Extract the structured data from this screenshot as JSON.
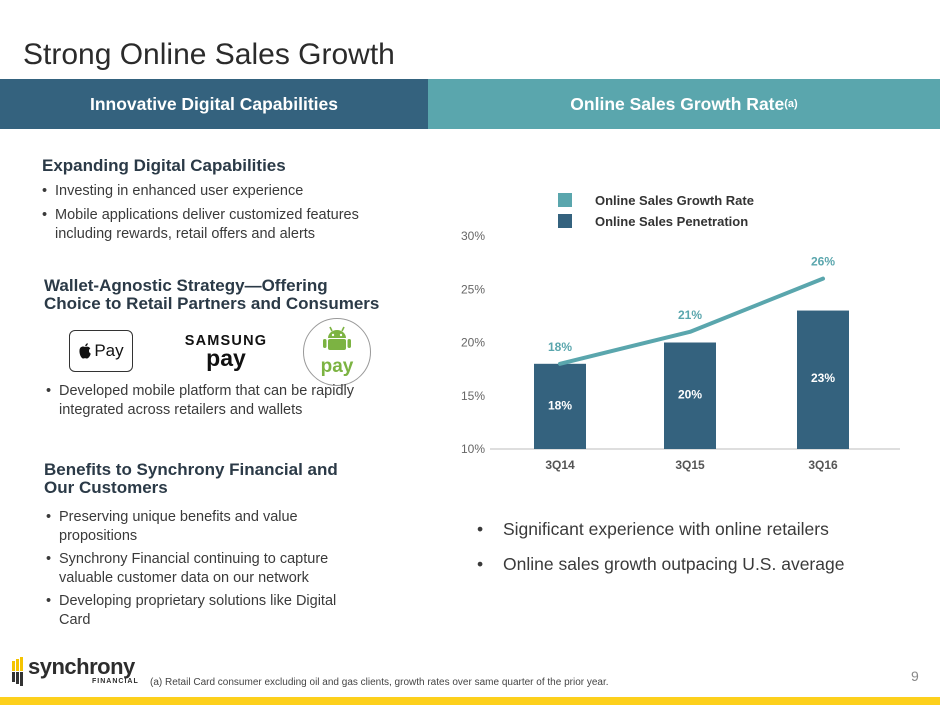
{
  "page": {
    "title": "Strong Online Sales Growth",
    "page_number": "9",
    "footnote": "(a)  Retail Card consumer excluding oil and gas clients, growth rates over same quarter of the prior year."
  },
  "header": {
    "left": "Innovative Digital Capabilities",
    "right": "Online Sales Growth Rate",
    "right_sup": "(a)"
  },
  "left": {
    "section1": {
      "title": "Expanding Digital Capabilities",
      "bullets": [
        {
          "line1": "Investing in enhanced user experience"
        },
        {
          "line1": "Mobile applications deliver customized features",
          "line2": "including rewards, retail offers and alerts"
        }
      ]
    },
    "section2": {
      "title_line1": "Wallet-Agnostic Strategy—Offering",
      "title_line2": "Choice to Retail Partners and Consumers",
      "logos": {
        "apple": "Pay",
        "samsung_top": "SAMSUNG",
        "samsung_bottom": "pay",
        "android": "pay"
      },
      "bullet_line1": "Developed mobile platform that can be rapidly",
      "bullet_line2": "integrated across retailers and wallets"
    },
    "section3": {
      "title_line1": "Benefits to Synchrony Financial and",
      "title_line2": "Our Customers",
      "bullets": [
        {
          "line1": "Preserving unique benefits and value",
          "line2": "propositions"
        },
        {
          "line1": "Synchrony Financial continuing to capture",
          "line2": "valuable customer data on our network"
        },
        {
          "line1": "Developing proprietary solutions like Digital",
          "line2": "Card"
        }
      ]
    }
  },
  "right": {
    "bullets": [
      "Significant experience with online retailers",
      "Online sales growth outpacing U.S. average"
    ]
  },
  "brand": {
    "name": "synchrony",
    "sub": "FINANCIAL"
  },
  "colors": {
    "navy": "#34627e",
    "teal": "#5aa6ad",
    "yellow": "#fdd01c"
  },
  "chart_data": {
    "type": "bar",
    "categories": [
      "3Q14",
      "3Q15",
      "3Q16"
    ],
    "ylim": [
      10,
      30
    ],
    "yticks": [
      "10%",
      "15%",
      "20%",
      "25%",
      "30%"
    ],
    "ytick_values": [
      10,
      15,
      20,
      25,
      30
    ],
    "series": [
      {
        "name": "Online Sales Penetration",
        "kind": "bar",
        "values": [
          18,
          20,
          23
        ],
        "labels": [
          "18%",
          "20%",
          "23%"
        ],
        "color": "#34627e"
      },
      {
        "name": "Online Sales Growth Rate",
        "kind": "line",
        "values": [
          18,
          21,
          26
        ],
        "labels": [
          "18%",
          "21%",
          "26%"
        ],
        "color": "#5aa6ad"
      }
    ],
    "legend": [
      "Online Sales Growth Rate",
      "Online Sales Penetration"
    ],
    "legend_position": "top-right"
  }
}
